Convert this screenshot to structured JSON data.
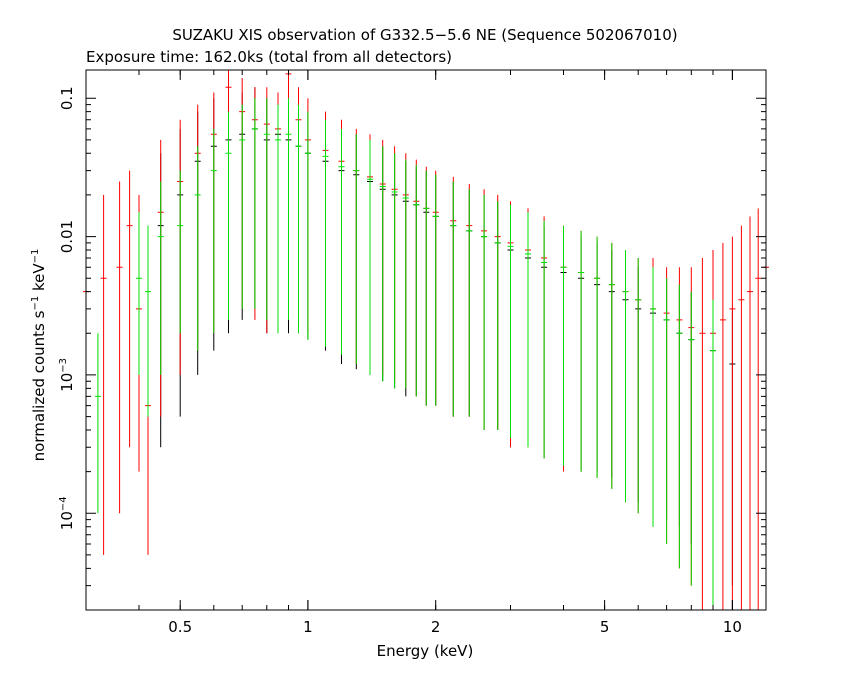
{
  "chart_data": {
    "type": "scatter",
    "title": "SUZAKU XIS observation of G332.5−5.6 NE (Sequence 502067010)",
    "subtitle": "Exposure time: 162.0ks (total from all detectors)",
    "xlabel": "Energy (keV)",
    "ylabel": {
      "pre": "normalized counts s",
      "exp1": "−1",
      "mid": " keV",
      "exp2": "−1"
    },
    "xscale": "log",
    "yscale": "log",
    "xlim": [
      0.3,
      12
    ],
    "ylim": [
      2e-05,
      0.16
    ],
    "xticks": [
      {
        "v": 0.5,
        "label": "0.5"
      },
      {
        "v": 1,
        "label": "1"
      },
      {
        "v": 2,
        "label": "2"
      },
      {
        "v": 5,
        "label": "5"
      },
      {
        "v": 10,
        "label": "10"
      }
    ],
    "yticks": [
      {
        "v": 0.1,
        "label": "0.1",
        "exp": ""
      },
      {
        "v": 0.01,
        "label": "0.01",
        "exp": ""
      },
      {
        "v": 0.001,
        "label": "10",
        "exp": "−3"
      },
      {
        "v": 0.0001,
        "label": "10",
        "exp": "−4"
      }
    ],
    "grid": false,
    "legend": "none",
    "colors": [
      "#000000",
      "#ff0000",
      "#00e000"
    ],
    "series": [
      {
        "color": "#000000",
        "x": [
          0.45,
          0.5,
          0.55,
          0.6,
          0.65,
          0.7,
          0.75,
          0.8,
          0.85,
          0.9,
          0.95,
          1.0,
          1.1,
          1.2,
          1.3,
          1.4,
          1.5,
          1.6,
          1.7,
          1.8,
          1.9,
          2.0,
          2.2,
          2.4,
          2.6,
          2.8,
          3.0,
          3.3,
          3.6,
          4.0,
          4.4,
          4.8,
          5.2,
          5.6,
          6.0,
          6.5,
          7.0,
          7.5,
          8.0,
          9.0,
          10.0
        ],
        "y": [
          0.012,
          0.02,
          0.035,
          0.045,
          0.05,
          0.055,
          0.06,
          0.05,
          0.055,
          0.05,
          0.045,
          0.04,
          0.035,
          0.03,
          0.028,
          0.025,
          0.022,
          0.02,
          0.018,
          0.017,
          0.015,
          0.014,
          0.012,
          0.011,
          0.01,
          0.009,
          0.008,
          0.007,
          0.006,
          0.0055,
          0.005,
          0.0045,
          0.004,
          0.0035,
          0.003,
          0.0028,
          0.0025,
          0.002,
          0.0018,
          0.0015,
          0.0012
        ],
        "ylo": [
          0.0003,
          0.0005,
          0.001,
          0.0015,
          0.002,
          0.0025,
          0.003,
          0.002,
          0.0025,
          0.002,
          0.002,
          0.0018,
          0.0015,
          0.0012,
          0.0011,
          0.001,
          0.0009,
          0.0008,
          0.0007,
          0.0007,
          0.0006,
          0.0006,
          0.0005,
          0.0005,
          0.0004,
          0.0004,
          0.0003,
          0.0003,
          0.00025,
          0.00022,
          0.0002,
          0.0002,
          0.00018,
          0.00015,
          0.00012,
          0.0001,
          9e-05,
          8e-05,
          6e-05,
          4e-05,
          3e-05
        ],
        "yhi": [
          0.04,
          0.06,
          0.08,
          0.1,
          0.1,
          0.11,
          0.12,
          0.1,
          0.11,
          0.1,
          0.09,
          0.08,
          0.07,
          0.06,
          0.055,
          0.05,
          0.045,
          0.04,
          0.035,
          0.032,
          0.03,
          0.028,
          0.025,
          0.022,
          0.02,
          0.018,
          0.016,
          0.014,
          0.012,
          0.011,
          0.01,
          0.009,
          0.008,
          0.007,
          0.006,
          0.006,
          0.005,
          0.0045,
          0.004,
          0.0035,
          0.003
        ]
      },
      {
        "color": "#ff0000",
        "x": [
          0.3,
          0.33,
          0.36,
          0.38,
          0.4,
          0.42,
          0.45,
          0.5,
          0.55,
          0.6,
          0.65,
          0.7,
          0.75,
          0.8,
          0.85,
          0.9,
          0.95,
          1.0,
          1.1,
          1.2,
          1.3,
          1.4,
          1.5,
          1.6,
          1.7,
          1.8,
          1.9,
          2.0,
          2.2,
          2.4,
          2.6,
          2.8,
          3.0,
          3.3,
          3.6,
          4.0,
          4.4,
          4.8,
          5.2,
          5.6,
          6.0,
          6.5,
          7.0,
          7.5,
          8.0,
          8.5,
          9.0,
          9.5,
          10.0,
          10.5,
          11.0,
          11.5,
          12.0
        ],
        "y": [
          0.004,
          0.005,
          0.006,
          0.012,
          0.003,
          0.0006,
          0.015,
          0.025,
          0.04,
          0.055,
          0.12,
          0.08,
          0.07,
          0.065,
          0.06,
          0.15,
          0.07,
          0.05,
          0.042,
          0.035,
          0.03,
          0.027,
          0.024,
          0.022,
          0.02,
          0.018,
          0.016,
          0.015,
          0.013,
          0.012,
          0.011,
          0.01,
          0.009,
          0.008,
          0.007,
          0.006,
          0.0055,
          0.005,
          0.0045,
          0.004,
          0.0035,
          0.003,
          0.0028,
          0.0025,
          0.0022,
          0.002,
          0.002,
          0.0025,
          0.003,
          0.0035,
          0.004,
          0.005,
          0.006
        ],
        "ylo": [
          2e-05,
          5e-05,
          0.0001,
          0.0003,
          0.0002,
          5e-05,
          0.0005,
          0.001,
          0.0015,
          0.002,
          0.005,
          0.003,
          0.0025,
          0.002,
          0.002,
          0.004,
          0.0025,
          0.002,
          0.0018,
          0.0015,
          0.0012,
          0.0011,
          0.001,
          0.0009,
          0.0008,
          0.0007,
          0.0006,
          0.0006,
          0.0005,
          0.0005,
          0.0004,
          0.0004,
          0.0003,
          0.0003,
          0.00025,
          0.0002,
          0.0002,
          0.00018,
          0.00015,
          0.00012,
          0.0001,
          8e-05,
          6e-05,
          4e-05,
          3e-05,
          2e-05,
          2e-05,
          2e-05,
          2e-05,
          2e-05,
          2e-05,
          2e-05,
          2e-05
        ],
        "yhi": [
          0.015,
          0.02,
          0.025,
          0.03,
          0.02,
          0.005,
          0.05,
          0.07,
          0.09,
          0.11,
          0.16,
          0.14,
          0.12,
          0.12,
          0.11,
          0.16,
          0.12,
          0.1,
          0.08,
          0.07,
          0.06,
          0.055,
          0.05,
          0.045,
          0.04,
          0.036,
          0.032,
          0.03,
          0.027,
          0.024,
          0.022,
          0.02,
          0.018,
          0.016,
          0.014,
          0.012,
          0.011,
          0.01,
          0.009,
          0.008,
          0.007,
          0.007,
          0.006,
          0.006,
          0.006,
          0.007,
          0.008,
          0.009,
          0.01,
          0.012,
          0.014,
          0.016,
          0.018
        ]
      },
      {
        "color": "#00e000",
        "x": [
          0.32,
          0.4,
          0.42,
          0.45,
          0.5,
          0.55,
          0.6,
          0.65,
          0.7,
          0.75,
          0.8,
          0.85,
          0.9,
          0.95,
          1.0,
          1.1,
          1.2,
          1.3,
          1.4,
          1.5,
          1.6,
          1.7,
          1.8,
          1.9,
          2.0,
          2.2,
          2.4,
          2.6,
          2.8,
          3.0,
          3.3,
          3.6,
          4.0,
          4.4,
          4.8,
          5.2,
          5.6,
          6.0,
          6.5,
          7.0,
          7.5,
          8.0,
          9.0
        ],
        "y": [
          0.0007,
          0.005,
          0.004,
          0.01,
          0.012,
          0.02,
          0.03,
          0.04,
          0.05,
          0.06,
          0.055,
          0.05,
          0.055,
          0.045,
          0.04,
          0.038,
          0.032,
          0.03,
          0.026,
          0.023,
          0.021,
          0.019,
          0.017,
          0.016,
          0.014,
          0.012,
          0.011,
          0.01,
          0.009,
          0.0085,
          0.0075,
          0.0065,
          0.006,
          0.0055,
          0.005,
          0.0045,
          0.004,
          0.0035,
          0.003,
          0.0025,
          0.002,
          0.0018,
          0.0015
        ],
        "ylo": [
          0.0001,
          0.001,
          0.0005,
          0.001,
          0.002,
          0.0015,
          0.002,
          0.0025,
          0.003,
          0.003,
          0.0025,
          0.002,
          0.0025,
          0.002,
          0.0018,
          0.0016,
          0.0014,
          0.0012,
          0.001,
          0.0009,
          0.0008,
          0.0008,
          0.0007,
          0.0006,
          0.0006,
          0.0005,
          0.0005,
          0.0004,
          0.0004,
          0.00035,
          0.0003,
          0.00025,
          0.00022,
          0.0002,
          0.00018,
          0.00015,
          0.00012,
          0.0001,
          8e-05,
          6e-05,
          4e-05,
          3e-05,
          2e-05
        ],
        "yhi": [
          0.002,
          0.015,
          0.012,
          0.025,
          0.03,
          0.045,
          0.06,
          0.08,
          0.09,
          0.1,
          0.1,
          0.09,
          0.1,
          0.09,
          0.08,
          0.07,
          0.06,
          0.055,
          0.05,
          0.045,
          0.04,
          0.036,
          0.033,
          0.03,
          0.028,
          0.025,
          0.022,
          0.02,
          0.018,
          0.017,
          0.015,
          0.013,
          0.012,
          0.011,
          0.01,
          0.009,
          0.008,
          0.007,
          0.006,
          0.005,
          0.0045,
          0.004,
          0.0035
        ]
      }
    ]
  }
}
